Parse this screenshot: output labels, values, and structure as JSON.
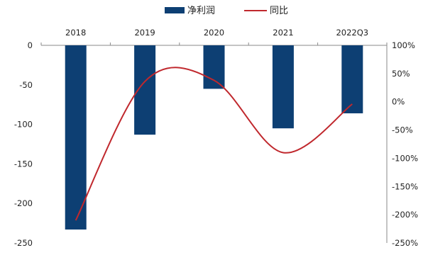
{
  "chart_data": {
    "type": "bar+line",
    "categories": [
      "2018",
      "2019",
      "2020",
      "2021",
      "2022Q3"
    ],
    "series": [
      {
        "name": "净利润",
        "type": "bar",
        "axis": "left",
        "color": "#0d3f73",
        "values": [
          -233,
          -113,
          -55,
          -105,
          -86
        ]
      },
      {
        "name": "同比",
        "type": "line",
        "axis": "right",
        "color": "#c0282d",
        "values": [
          -2.1,
          0.36,
          0.38,
          -0.9,
          -0.04
        ]
      }
    ],
    "y_left": {
      "ylim": [
        -250,
        0
      ],
      "ticks": [
        "0",
        "-50",
        "-100",
        "-150",
        "-200",
        "-250"
      ]
    },
    "y_right": {
      "ylim": [
        -2.5,
        1.0
      ],
      "ticks": [
        "100%",
        "50%",
        "0%",
        "-50%",
        "-100%",
        "-150%",
        "-200%",
        "-250%"
      ]
    },
    "legend_position": "top-center",
    "grid": false
  }
}
